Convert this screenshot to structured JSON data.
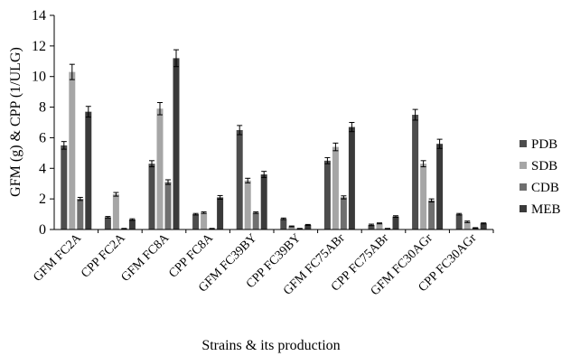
{
  "chart_data": {
    "type": "bar",
    "xlabel": "Strains & its production",
    "ylabel": "GFM (g) & CPP (1/ULG)",
    "ylim": [
      0,
      14
    ],
    "yticks": [
      0,
      2,
      4,
      6,
      8,
      10,
      12,
      14
    ],
    "grid": false,
    "legend_position": "right",
    "categories": [
      "GFM  FC2A",
      "CPP  FC2A",
      "GFM  FC8A",
      "CPP  FC8A",
      "GFM FC39BY",
      "CPP  FC39BY",
      "GFM FC75ABr",
      "CPP FC75ABr",
      "GFM FC30AGr",
      "CPP FC30AGr"
    ],
    "series": [
      {
        "name": "PDB",
        "color": "#4d4d4d",
        "values": [
          5.5,
          0.8,
          4.3,
          1.0,
          6.5,
          0.7,
          4.5,
          0.3,
          7.5,
          1.0
        ],
        "errors": [
          0.25,
          0.05,
          0.2,
          0.05,
          0.3,
          0.05,
          0.2,
          0.05,
          0.35,
          0.05
        ]
      },
      {
        "name": "SDB",
        "color": "#a6a6a6",
        "values": [
          10.3,
          2.3,
          7.9,
          1.1,
          3.2,
          0.2,
          5.4,
          0.4,
          4.3,
          0.5
        ],
        "errors": [
          0.5,
          0.12,
          0.4,
          0.05,
          0.15,
          0.03,
          0.25,
          0.03,
          0.2,
          0.05
        ]
      },
      {
        "name": "CDB",
        "color": "#6f6f6f",
        "values": [
          2.0,
          0.05,
          3.1,
          0.05,
          1.1,
          0.05,
          2.1,
          0.05,
          1.9,
          0.1
        ],
        "errors": [
          0.1,
          0.02,
          0.15,
          0.02,
          0.05,
          0.02,
          0.1,
          0.02,
          0.1,
          0.02
        ]
      },
      {
        "name": "MEB",
        "color": "#3a3a3a",
        "values": [
          7.7,
          0.65,
          11.2,
          2.1,
          3.6,
          0.3,
          6.7,
          0.85,
          5.6,
          0.4
        ],
        "errors": [
          0.35,
          0.05,
          0.55,
          0.12,
          0.2,
          0.03,
          0.3,
          0.05,
          0.3,
          0.03
        ]
      }
    ]
  }
}
